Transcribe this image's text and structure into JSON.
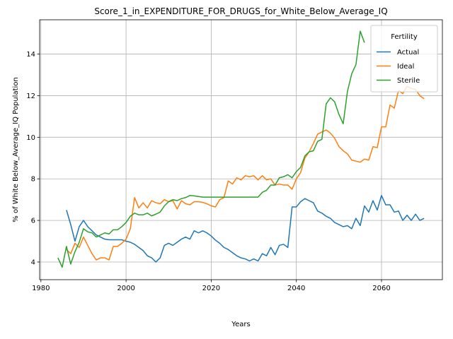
{
  "chart_data": {
    "type": "line",
    "title": "Score_1_in_EXPENDITURE_FOR_DRUGS_for_White_Below_Average_IQ",
    "xlabel": "Years",
    "ylabel": "% of White Below_Average_IQ Population",
    "xlim": [
      1979.7,
      2074.3
    ],
    "ylim": [
      3.15,
      15.65
    ],
    "xticks": [
      1980,
      2000,
      2020,
      2040,
      2060
    ],
    "yticks": [
      4,
      6,
      8,
      10,
      12,
      14
    ],
    "grid": true,
    "legend": {
      "title": "Fertility",
      "position": "top-right"
    },
    "series": [
      {
        "name": "Actual",
        "color": "#1f77b4",
        "x": [
          1986,
          1987,
          1988,
          1989,
          1990,
          1991,
          1992,
          1993,
          1994,
          1995,
          1996,
          1997,
          1998,
          1999,
          2000,
          2001,
          2002,
          2003,
          2004,
          2005,
          2006,
          2007,
          2008,
          2009,
          2010,
          2011,
          2012,
          2013,
          2014,
          2015,
          2016,
          2017,
          2018,
          2019,
          2020,
          2021,
          2022,
          2023,
          2024,
          2025,
          2026,
          2027,
          2028,
          2029,
          2030,
          2031,
          2032,
          2033,
          2034,
          2035,
          2036,
          2037,
          2038,
          2039,
          2040,
          2041,
          2042,
          2043,
          2044,
          2045,
          2046,
          2047,
          2048,
          2049,
          2050,
          2051,
          2052,
          2053,
          2054,
          2055,
          2056,
          2057,
          2058,
          2059,
          2060,
          2061,
          2062,
          2063,
          2064,
          2065,
          2066,
          2067,
          2068,
          2069,
          2070
        ],
        "y": [
          6.5,
          5.8,
          5.0,
          5.7,
          6.0,
          5.7,
          5.5,
          5.3,
          5.2,
          5.1,
          5.07,
          5.07,
          5.07,
          5.07,
          5.0,
          4.95,
          4.85,
          4.7,
          4.55,
          4.3,
          4.2,
          4.0,
          4.2,
          4.8,
          4.9,
          4.8,
          4.95,
          5.1,
          5.2,
          5.1,
          5.5,
          5.4,
          5.5,
          5.4,
          5.25,
          5.05,
          4.9,
          4.7,
          4.6,
          4.45,
          4.3,
          4.2,
          4.15,
          4.05,
          4.15,
          4.05,
          4.4,
          4.3,
          4.7,
          4.35,
          4.8,
          4.85,
          4.7,
          6.65,
          6.65,
          6.9,
          7.05,
          6.95,
          6.85,
          6.45,
          6.35,
          6.2,
          6.1,
          5.9,
          5.8,
          5.7,
          5.75,
          5.6,
          6.1,
          5.75,
          6.7,
          6.4,
          6.95,
          6.5,
          7.2,
          6.75,
          6.75,
          6.4,
          6.45,
          6.0,
          6.25,
          6.0,
          6.3,
          6.0,
          6.1
        ]
      },
      {
        "name": "Ideal",
        "color": "#ff7f0e",
        "x": [
          1986,
          1987,
          1988,
          1989,
          1990,
          1991,
          1992,
          1993,
          1994,
          1995,
          1996,
          1997,
          1998,
          1999,
          2000,
          2001,
          2002,
          2003,
          2004,
          2005,
          2006,
          2007,
          2008,
          2009,
          2010,
          2011,
          2012,
          2013,
          2014,
          2015,
          2016,
          2017,
          2018,
          2019,
          2020,
          2021,
          2022,
          2023,
          2024,
          2025,
          2026,
          2027,
          2028,
          2029,
          2030,
          2031,
          2032,
          2033,
          2034,
          2035,
          2036,
          2037,
          2038,
          2039,
          2040,
          2041,
          2042,
          2043,
          2044,
          2045,
          2046,
          2047,
          2048,
          2049,
          2050,
          2051,
          2052,
          2053,
          2054,
          2055,
          2056,
          2057,
          2058,
          2059,
          2060,
          2061,
          2062,
          2063,
          2064,
          2065,
          2066,
          2067,
          2068,
          2069,
          2070
        ],
        "y": [
          4.6,
          4.4,
          4.9,
          4.7,
          5.2,
          4.8,
          4.4,
          4.1,
          4.2,
          4.2,
          4.1,
          4.75,
          4.75,
          4.9,
          5.1,
          5.6,
          7.1,
          6.6,
          6.85,
          6.6,
          6.95,
          6.85,
          6.8,
          7.0,
          6.9,
          6.95,
          6.55,
          6.95,
          6.8,
          6.75,
          6.9,
          6.9,
          6.87,
          6.8,
          6.7,
          6.65,
          7.0,
          7.1,
          7.9,
          7.75,
          8.05,
          7.95,
          8.15,
          8.1,
          8.15,
          7.95,
          8.15,
          7.95,
          8.0,
          7.7,
          7.75,
          7.7,
          7.7,
          7.5,
          8.0,
          8.3,
          9.0,
          9.3,
          9.7,
          10.15,
          10.25,
          10.35,
          10.2,
          9.95,
          9.55,
          9.35,
          9.2,
          8.9,
          8.85,
          8.8,
          8.95,
          8.9,
          9.55,
          9.5,
          10.5,
          10.5,
          11.55,
          11.4,
          12.25,
          12.1,
          12.45,
          12.35,
          12.3,
          12.0,
          11.85
        ]
      },
      {
        "name": "Sterile",
        "color": "#2ca02c",
        "x": [
          1984,
          1985,
          1986,
          1987,
          1988,
          1989,
          1990,
          1991,
          1992,
          1993,
          1994,
          1995,
          1996,
          1997,
          1998,
          1999,
          2000,
          2001,
          2002,
          2003,
          2004,
          2005,
          2006,
          2007,
          2008,
          2009,
          2010,
          2011,
          2012,
          2013,
          2014,
          2015,
          2016,
          2017,
          2018,
          2019,
          2020,
          2021,
          2022,
          2023,
          2024,
          2025,
          2026,
          2027,
          2028,
          2029,
          2030,
          2031,
          2032,
          2033,
          2034,
          2035,
          2036,
          2037,
          2038,
          2039,
          2040,
          2041,
          2042,
          2043,
          2044,
          2045,
          2046,
          2047,
          2048,
          2049,
          2050,
          2051,
          2052,
          2053,
          2054,
          2055,
          2056
        ],
        "y": [
          4.2,
          3.75,
          4.75,
          3.9,
          4.5,
          4.95,
          5.6,
          5.45,
          5.4,
          5.2,
          5.3,
          5.4,
          5.35,
          5.55,
          5.55,
          5.7,
          5.9,
          6.2,
          6.35,
          6.27,
          6.27,
          6.35,
          6.22,
          6.3,
          6.4,
          6.7,
          6.9,
          7.0,
          6.95,
          7.05,
          7.1,
          7.2,
          7.18,
          7.15,
          7.12,
          7.12,
          7.12,
          7.12,
          7.12,
          7.12,
          7.12,
          7.12,
          7.12,
          7.12,
          7.12,
          7.12,
          7.12,
          7.12,
          7.35,
          7.45,
          7.7,
          7.7,
          8.05,
          8.1,
          8.2,
          8.05,
          8.35,
          8.55,
          9.1,
          9.3,
          9.35,
          9.8,
          9.9,
          11.6,
          11.9,
          11.7,
          11.1,
          10.65,
          12.2,
          13.05,
          13.5,
          15.1,
          14.55
        ]
      }
    ]
  }
}
